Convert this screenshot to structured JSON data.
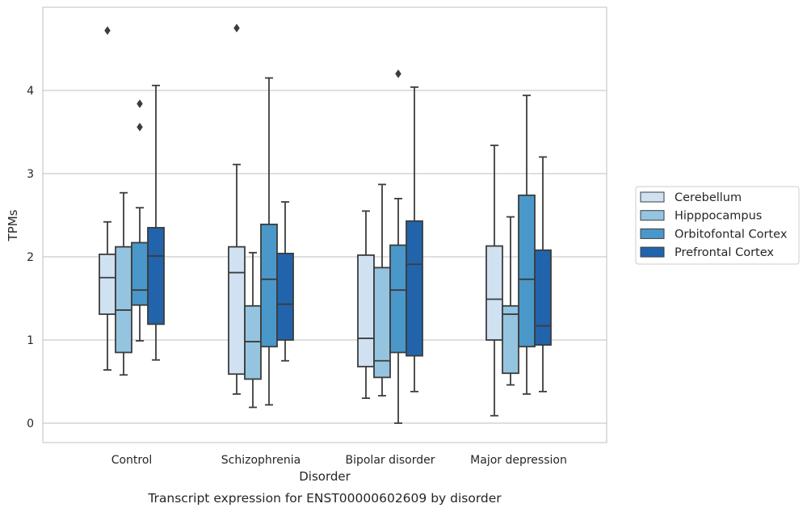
{
  "chart_data": {
    "type": "box",
    "title": "",
    "caption": "Transcript expression for ENST00000602609 by disorder",
    "xlabel": "Disorder",
    "ylabel": "TPMs",
    "ylim": [
      -0.22,
      5.0
    ],
    "yticks": [
      0,
      1,
      2,
      3,
      4
    ],
    "grid": true,
    "legend_position": "right",
    "categories": [
      "Control",
      "Schizophrenia",
      "Bipolar disorder",
      "Major depression"
    ],
    "series": [
      {
        "name": "Cerebellum",
        "color": "#d0e1f2",
        "boxes": [
          {
            "whisker_low": 0.64,
            "q1": 1.31,
            "median": 1.75,
            "q3": 2.03,
            "whisker_high": 2.42,
            "outliers": [
              4.72
            ]
          },
          {
            "whisker_low": 0.35,
            "q1": 0.59,
            "median": 1.81,
            "q3": 2.12,
            "whisker_high": 3.11,
            "outliers": [
              4.75
            ]
          },
          {
            "whisker_low": 0.3,
            "q1": 0.68,
            "median": 1.02,
            "q3": 2.02,
            "whisker_high": 2.55,
            "outliers": []
          },
          {
            "whisker_low": 0.09,
            "q1": 1.0,
            "median": 1.49,
            "q3": 2.13,
            "whisker_high": 3.34,
            "outliers": []
          }
        ]
      },
      {
        "name": "Hipppocampus",
        "color": "#94c4df",
        "boxes": [
          {
            "whisker_low": 0.58,
            "q1": 0.85,
            "median": 1.36,
            "q3": 2.12,
            "whisker_high": 2.77,
            "outliers": []
          },
          {
            "whisker_low": 0.19,
            "q1": 0.53,
            "median": 0.98,
            "q3": 1.41,
            "whisker_high": 2.05,
            "outliers": []
          },
          {
            "whisker_low": 0.33,
            "q1": 0.55,
            "median": 0.75,
            "q3": 1.87,
            "whisker_high": 2.87,
            "outliers": []
          },
          {
            "whisker_low": 0.46,
            "q1": 0.6,
            "median": 1.31,
            "q3": 1.41,
            "whisker_high": 2.48,
            "outliers": []
          }
        ]
      },
      {
        "name": "Orbitofontal Cortex",
        "color": "#4a98c9",
        "boxes": [
          {
            "whisker_low": 0.99,
            "q1": 1.42,
            "median": 1.6,
            "q3": 2.17,
            "whisker_high": 2.59,
            "outliers": [
              3.56,
              3.84
            ]
          },
          {
            "whisker_low": 0.22,
            "q1": 0.92,
            "median": 1.73,
            "q3": 2.39,
            "whisker_high": 4.15,
            "outliers": []
          },
          {
            "whisker_low": 0.0,
            "q1": 0.85,
            "median": 1.6,
            "q3": 2.14,
            "whisker_high": 2.7,
            "outliers": [
              4.2
            ]
          },
          {
            "whisker_low": 0.35,
            "q1": 0.92,
            "median": 1.73,
            "q3": 2.74,
            "whisker_high": 3.94,
            "outliers": []
          }
        ]
      },
      {
        "name": "Prefrontal Cortex",
        "color": "#2164ab",
        "boxes": [
          {
            "whisker_low": 0.76,
            "q1": 1.19,
            "median": 2.01,
            "q3": 2.35,
            "whisker_high": 4.06,
            "outliers": []
          },
          {
            "whisker_low": 0.75,
            "q1": 1.0,
            "median": 1.43,
            "q3": 2.04,
            "whisker_high": 2.66,
            "outliers": []
          },
          {
            "whisker_low": 0.38,
            "q1": 0.81,
            "median": 1.91,
            "q3": 2.43,
            "whisker_high": 4.04,
            "outliers": []
          },
          {
            "whisker_low": 0.38,
            "q1": 0.94,
            "median": 1.17,
            "q3": 2.08,
            "whisker_high": 3.2,
            "outliers": []
          }
        ]
      }
    ]
  }
}
